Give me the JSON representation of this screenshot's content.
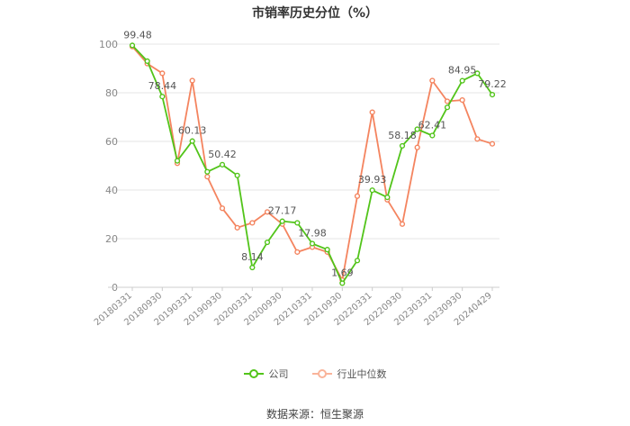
{
  "chart_data": {
    "type": "line",
    "title": "市销率历史分位（%）",
    "source": "数据来源：恒生聚源",
    "ylim": [
      0,
      100
    ],
    "yticks": [
      0,
      20,
      40,
      60,
      80,
      100
    ],
    "grid": true,
    "legend_position": "bottom",
    "x": [
      "20180331",
      "20180630",
      "20180930",
      "20181231",
      "20190331",
      "20190630",
      "20190930",
      "20191231",
      "20200331",
      "20200630",
      "20200930",
      "20201231",
      "20210331",
      "20210630",
      "20210930",
      "20211231",
      "20220331",
      "20220630",
      "20220930",
      "20221231",
      "20230331",
      "20230630",
      "20230930",
      "20231231",
      "20240429"
    ],
    "xtick_labels": [
      "20180331",
      "20180930",
      "20190331",
      "20190930",
      "20200331",
      "20200930",
      "20210331",
      "20210930",
      "20220331",
      "20220930",
      "20230331",
      "20230930",
      "20240429"
    ],
    "series": [
      {
        "name": "公司",
        "color": "#52c41a",
        "values": [
          99.48,
          93.0,
          78.44,
          52.0,
          60.13,
          47.5,
          50.42,
          46.0,
          8.14,
          18.5,
          27.17,
          26.5,
          17.98,
          15.5,
          1.69,
          11.0,
          39.93,
          37.0,
          58.18,
          65.0,
          62.41,
          74.0,
          84.95,
          88.0,
          79.22
        ]
      },
      {
        "name": "行业中位数",
        "color": "#f4845f",
        "values": [
          99.0,
          92.0,
          88.0,
          51.0,
          85.0,
          45.5,
          32.5,
          24.5,
          26.5,
          31.0,
          26.0,
          14.5,
          16.5,
          14.5,
          3.0,
          37.5,
          72.0,
          36.0,
          26.0,
          57.5,
          85.0,
          76.5,
          77.0,
          61.0,
          59.0
        ]
      }
    ],
    "data_labels": [
      {
        "series": 0,
        "index": 0,
        "text": "99.48"
      },
      {
        "series": 0,
        "index": 2,
        "text": "78.44"
      },
      {
        "series": 0,
        "index": 4,
        "text": "60.13"
      },
      {
        "series": 0,
        "index": 6,
        "text": "50.42"
      },
      {
        "series": 0,
        "index": 8,
        "text": "8.14"
      },
      {
        "series": 0,
        "index": 10,
        "text": "27.17"
      },
      {
        "series": 0,
        "index": 12,
        "text": "17.98"
      },
      {
        "series": 0,
        "index": 14,
        "text": "1.69"
      },
      {
        "series": 0,
        "index": 16,
        "text": "39.93"
      },
      {
        "series": 0,
        "index": 18,
        "text": "58.18"
      },
      {
        "series": 0,
        "index": 20,
        "text": "62.41"
      },
      {
        "series": 0,
        "index": 22,
        "text": "84.95"
      },
      {
        "series": 0,
        "index": 24,
        "text": "79.22"
      }
    ]
  }
}
